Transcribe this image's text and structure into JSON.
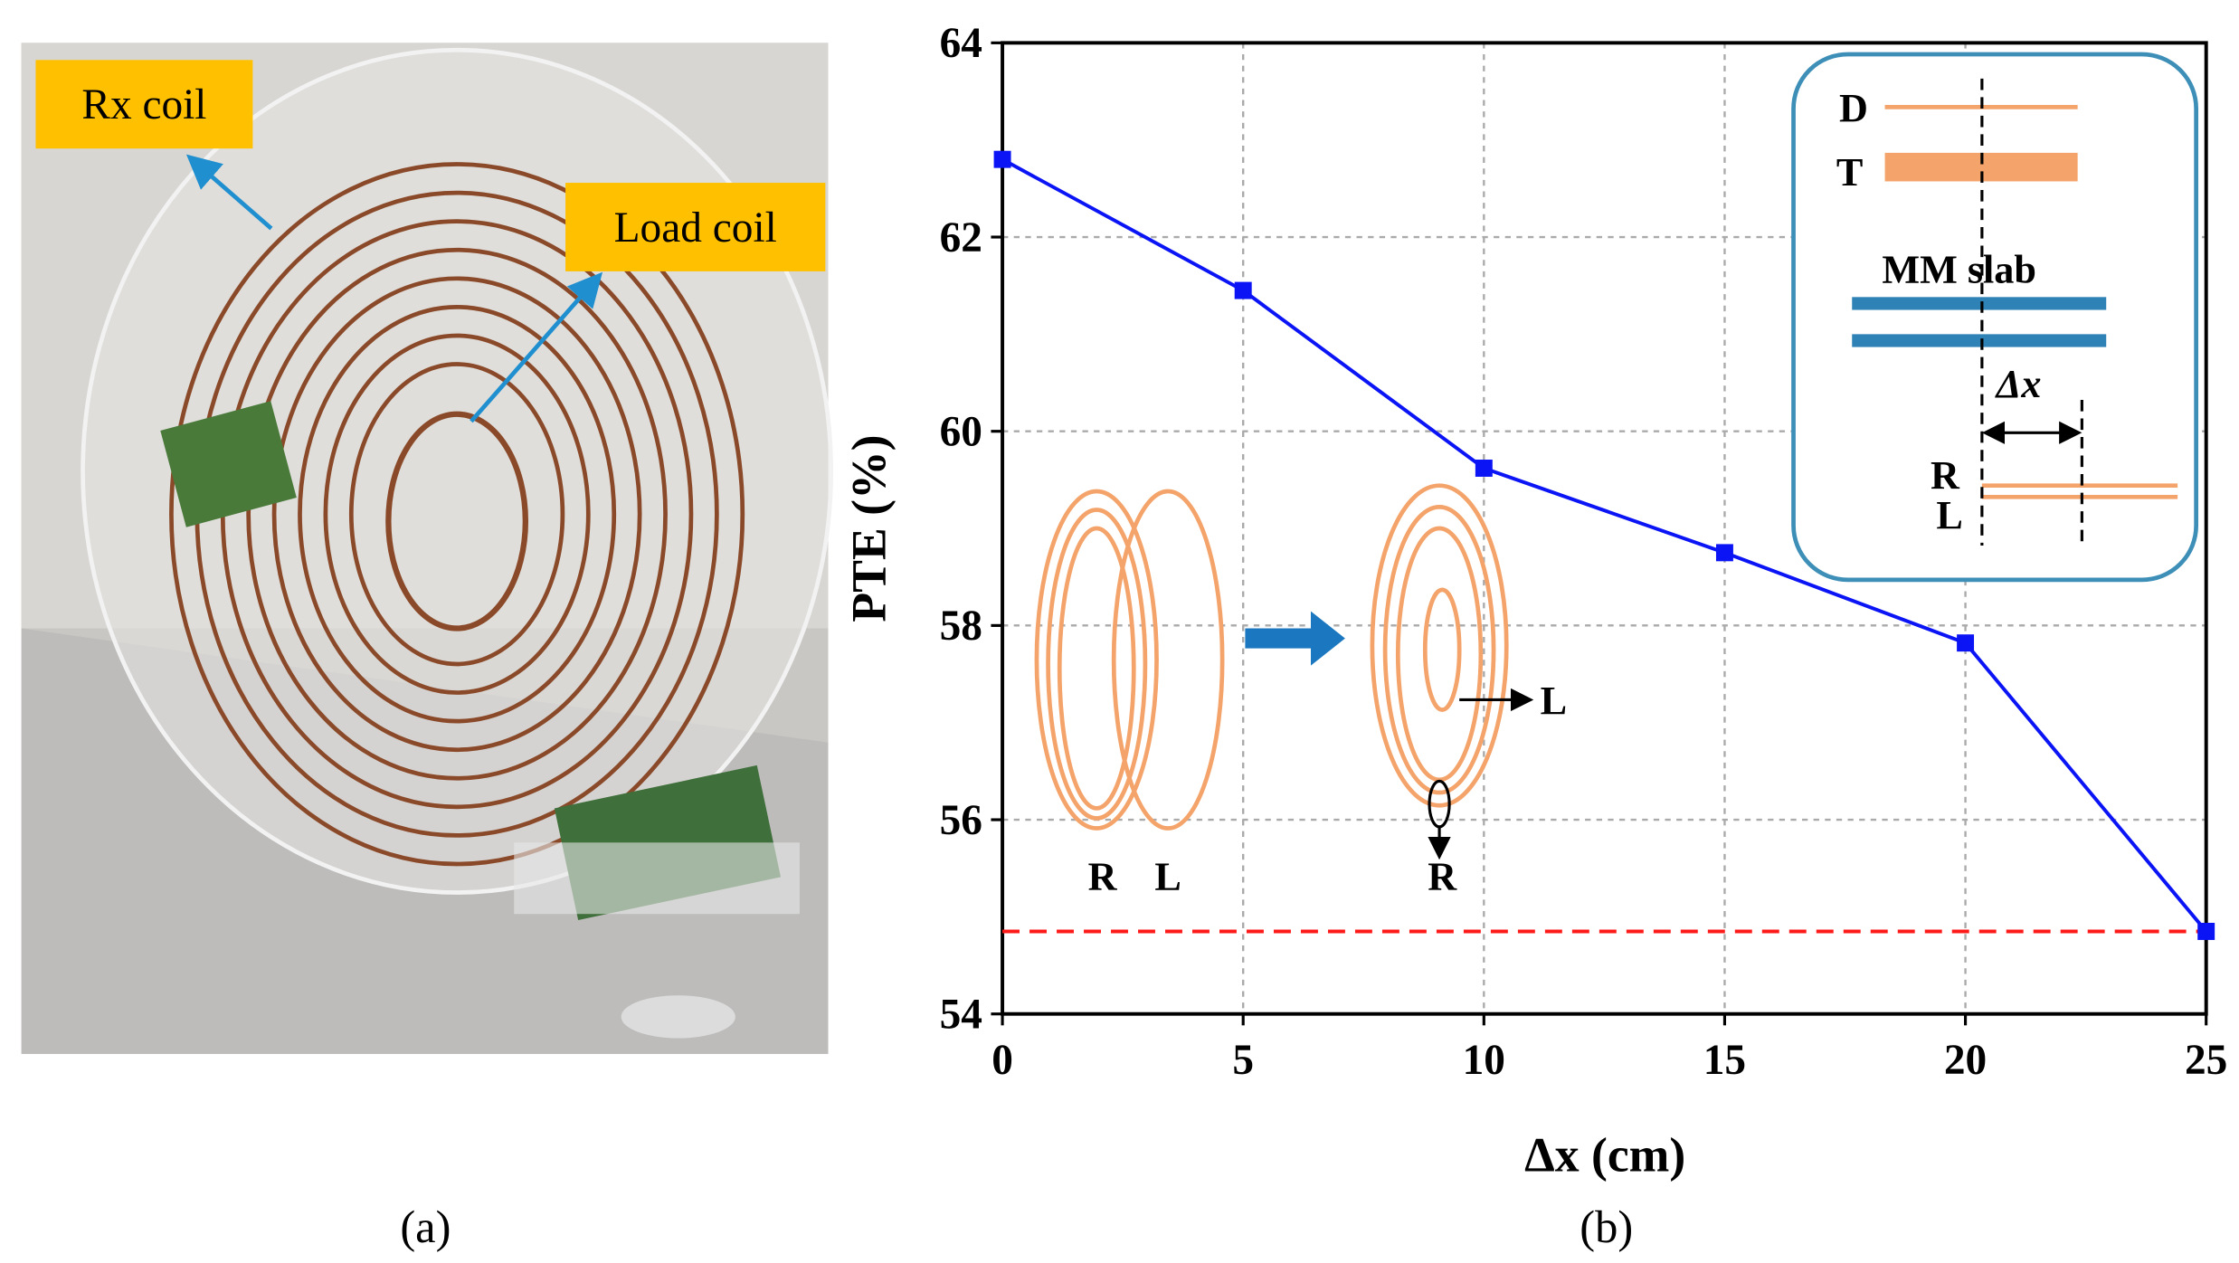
{
  "panel_a": {
    "label": "(a)",
    "callouts": [
      "Rx coil",
      "Load coil"
    ]
  },
  "chart_data": {
    "type": "line",
    "panel_label": "(b)",
    "x_label": "Δx (cm)",
    "y_label": "PTE (%)",
    "x": [
      0,
      5,
      10,
      15,
      20,
      25
    ],
    "series": [
      {
        "color": "#0a14f5",
        "values": [
          62.8,
          61.45,
          59.62,
          58.75,
          57.82,
          54.85
        ]
      }
    ],
    "reference_line": {
      "value": 54.85,
      "color": "#ff1a1a"
    },
    "xlim": [
      0,
      25
    ],
    "xticks": [
      0,
      5,
      10,
      15,
      20,
      25
    ],
    "ylim": [
      54,
      64
    ],
    "yticks": [
      54,
      56,
      58,
      60,
      62,
      64
    ],
    "grid": true,
    "annotations": [
      "D",
      "T",
      "MM slab",
      "Δx",
      "R",
      "L",
      "R",
      "L",
      "R",
      "L"
    ]
  }
}
